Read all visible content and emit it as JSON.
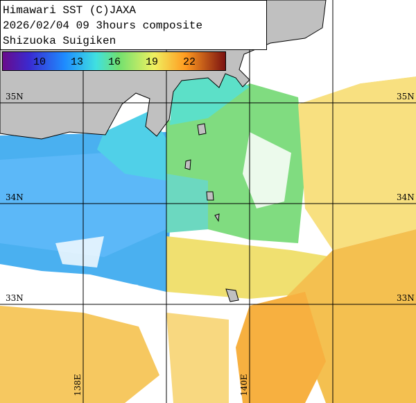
{
  "header": {
    "lines": [
      "Himawari SST (C)JAXA",
      "2026/02/04 09 3hours composite",
      "Shizuoka Suigiken"
    ]
  },
  "colorbar": {
    "ticks": [
      10,
      13,
      16,
      19,
      22
    ]
  },
  "grid": {
    "lat_labels": [
      "35N",
      "34N",
      "33N"
    ],
    "lon_labels": [
      "138E",
      "140E"
    ]
  }
}
